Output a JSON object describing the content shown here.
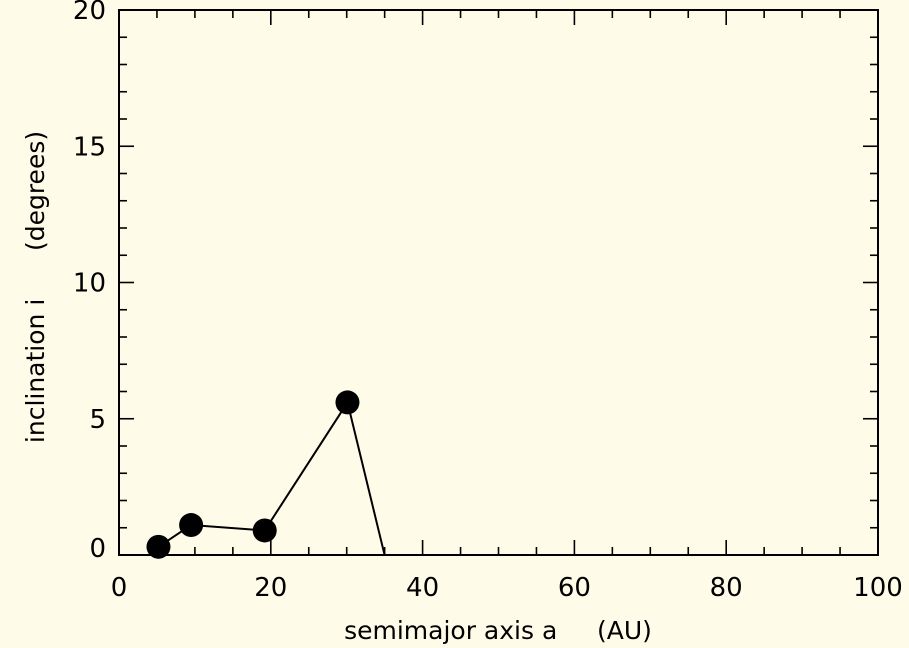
{
  "chart_data": {
    "type": "line",
    "xlabel": "semimajor axis a     (AU)",
    "ylabel": "inclination i      (degrees)",
    "xlim": [
      0,
      100
    ],
    "ylim": [
      0,
      20
    ],
    "xticks": [
      0,
      20,
      40,
      60,
      80,
      100
    ],
    "yticks": [
      0,
      5,
      10,
      15,
      20
    ],
    "x_minor_step": 5,
    "y_minor_step": 1,
    "grid": false,
    "series": [
      {
        "x": [
          5.2,
          9.5,
          19.2,
          30.1,
          35
        ],
        "y": [
          0.3,
          1.1,
          0.9,
          5.6,
          0
        ],
        "markers": [
          true,
          true,
          true,
          true,
          false
        ]
      }
    ],
    "colors": {
      "background": "#fffbe9",
      "ink": "#000000"
    }
  }
}
